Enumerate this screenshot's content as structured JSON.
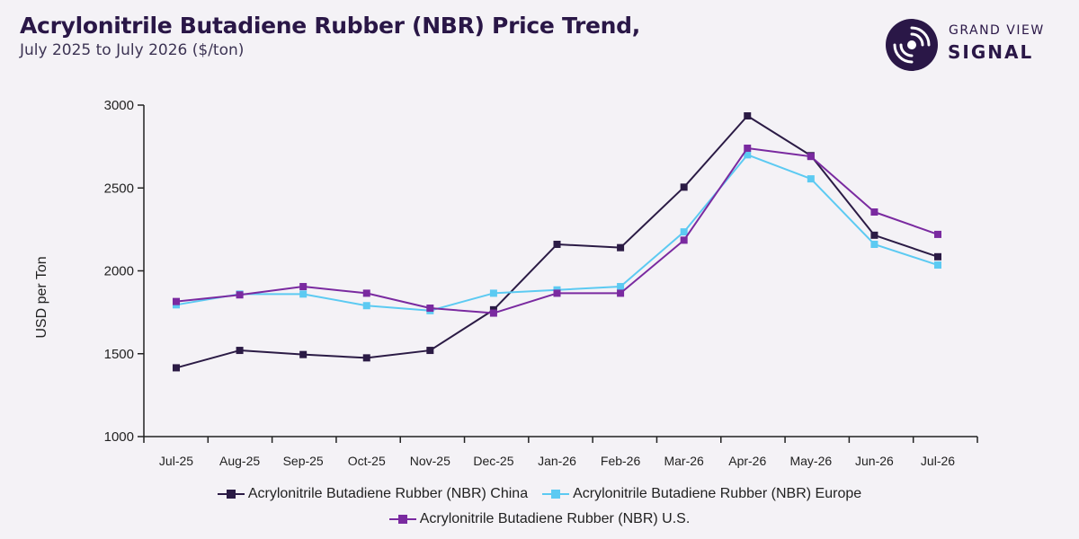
{
  "header": {
    "title": "Acrylonitrile Butadiene Rubber (NBR) Price Trend,",
    "subtitle": "July 2025 to July 2026 ($/ton)"
  },
  "logo": {
    "top_text": "GRAND VIEW",
    "bottom_text": "SIGNAL",
    "color": "#2a1747"
  },
  "chart_data": {
    "type": "line",
    "title": "Acrylonitrile Butadiene Rubber (NBR) Price Trend,",
    "subtitle": "July 2025 to July 2026 ($/ton)",
    "xlabel": "",
    "ylabel": "USD per Ton",
    "ylim": [
      1000,
      3000
    ],
    "yticks": [
      1000,
      1500,
      2000,
      2500,
      3000
    ],
    "grid": false,
    "legend_position": "bottom",
    "categories": [
      "Jul-25",
      "Aug-25",
      "Sep-25",
      "Oct-25",
      "Nov-25",
      "Dec-25",
      "Jan-26",
      "Feb-26",
      "Mar-26",
      "Apr-26",
      "May-26",
      "Jun-26",
      "Jul-26"
    ],
    "series": [
      {
        "name": "Acrylonitrile Butadiene Rubber (NBR) China",
        "color": "#2b1b45",
        "values": [
          1415,
          1520,
          1495,
          1475,
          1520,
          1765,
          2160,
          2140,
          2505,
          2935,
          2695,
          2215,
          2085
        ]
      },
      {
        "name": "Acrylonitrile Butadiene Rubber (NBR) Europe",
        "color": "#5ccaf2",
        "values": [
          1795,
          1860,
          1860,
          1790,
          1760,
          1865,
          1885,
          1905,
          2235,
          2700,
          2555,
          2160,
          2035
        ]
      },
      {
        "name": "Acrylonitrile Butadiene Rubber (NBR) U.S.",
        "color": "#7a2aa0",
        "values": [
          1815,
          1855,
          1905,
          1865,
          1775,
          1745,
          1865,
          1865,
          2185,
          2740,
          2690,
          2355,
          2220
        ]
      }
    ]
  }
}
